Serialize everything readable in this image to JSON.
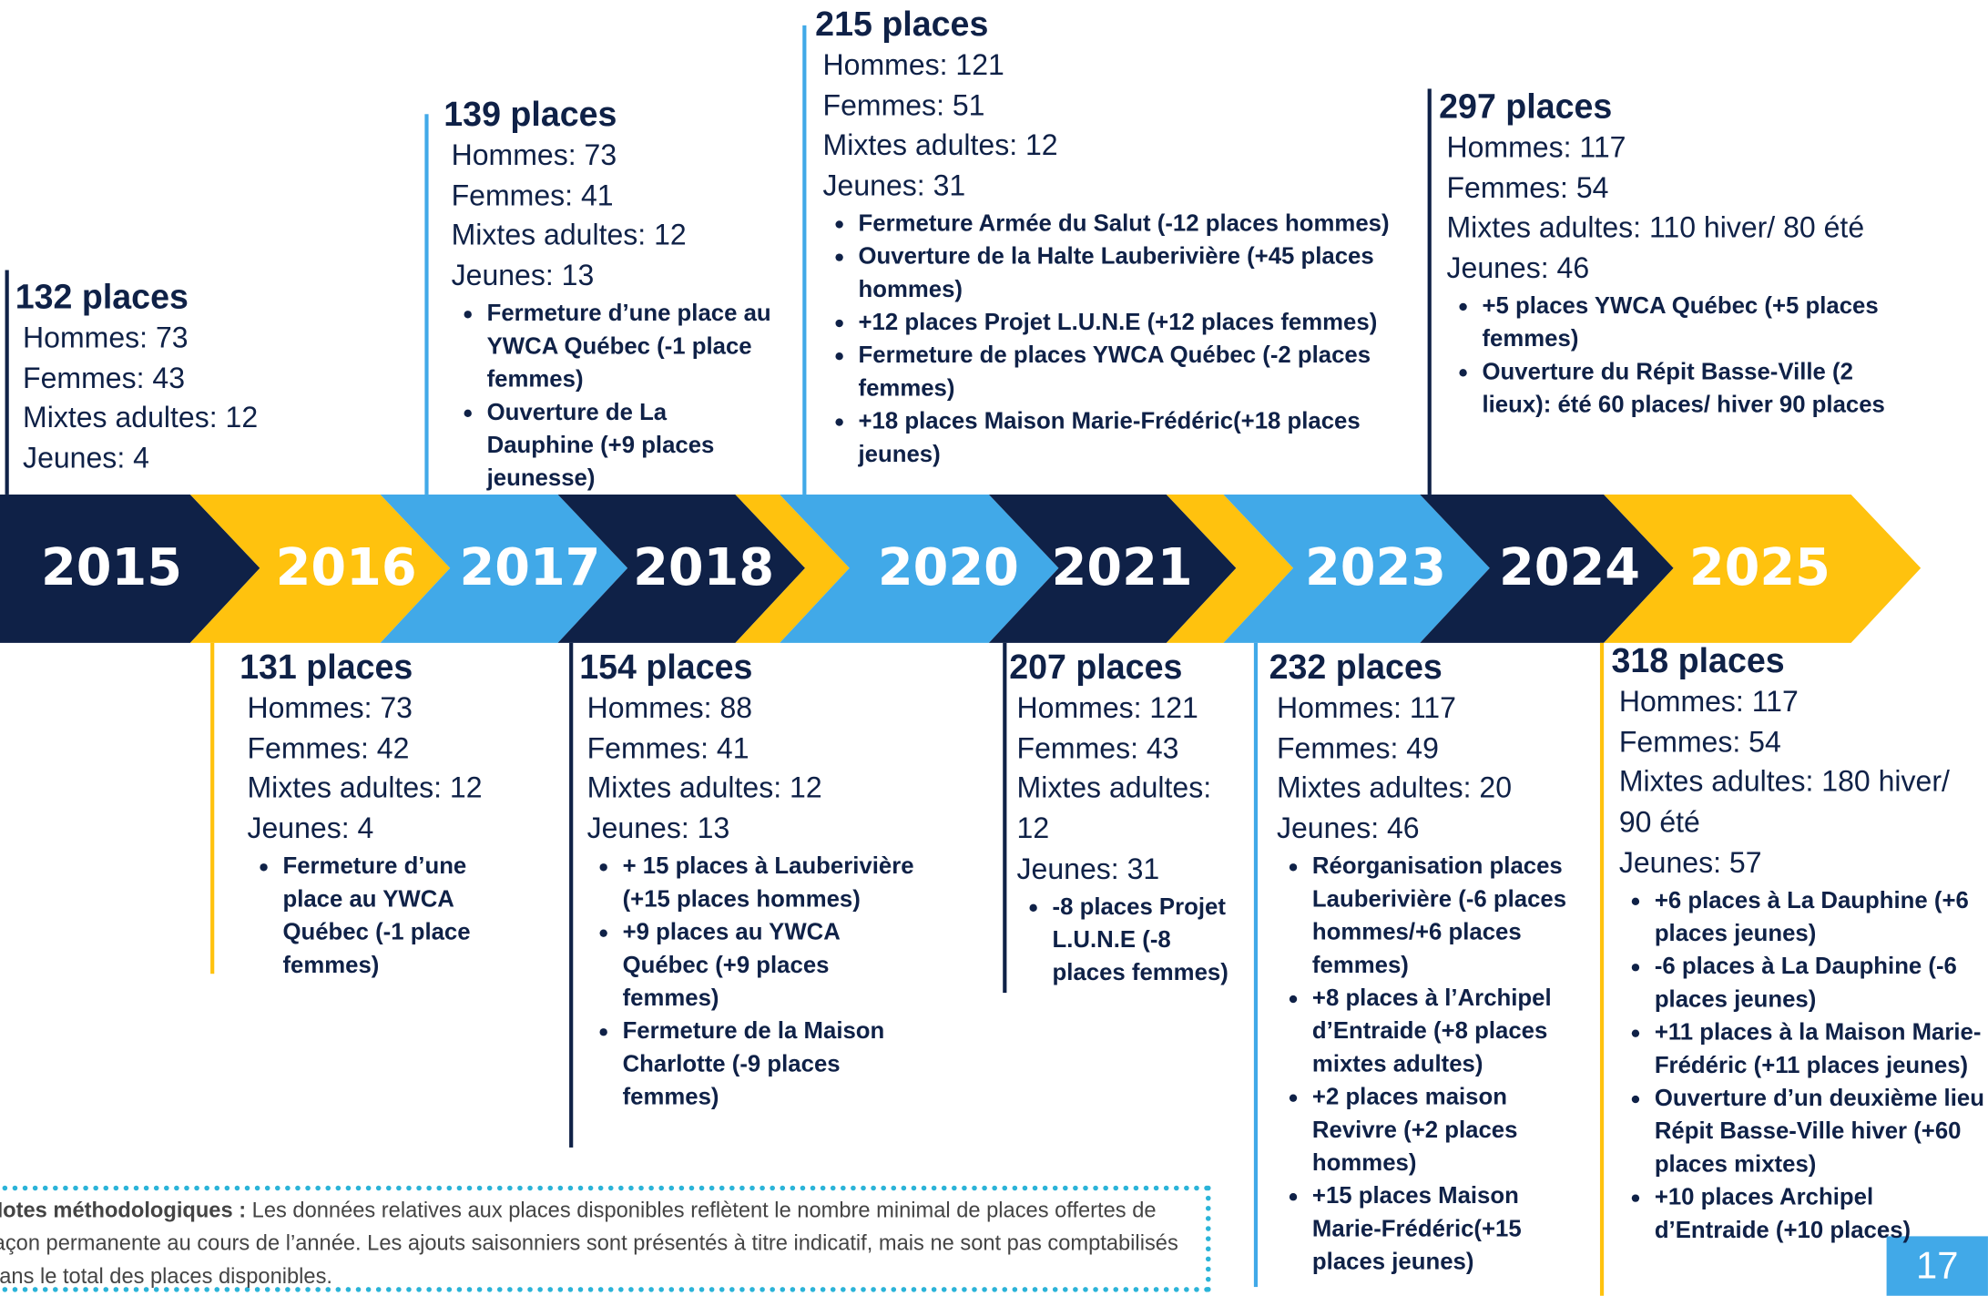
{
  "timeline": {
    "years": [
      "2015",
      "2016",
      "2017",
      "2018",
      "2020",
      "2021",
      "2023",
      "2024",
      "2025"
    ],
    "entries": [
      {
        "title": "132 places",
        "stats": [
          "Hommes: 73",
          "Femmes: 43",
          "Mixtes adultes: 12",
          "Jeunes: 4"
        ],
        "bullets": []
      },
      {
        "title": "131 places",
        "stats": [
          "Hommes: 73",
          "Femmes: 42",
          "Mixtes adultes: 12",
          "Jeunes: 4"
        ],
        "bullets": [
          "Fermeture d’une place au YWCA Québec  (-1 place femmes)"
        ]
      },
      {
        "title": "139 places",
        "stats": [
          "Hommes: 73",
          "Femmes: 41",
          "Mixtes adultes: 12",
          "Jeunes: 13"
        ],
        "bullets": [
          "Fermeture d’une place au YWCA Québec  (-1 place femmes)",
          "Ouverture de La Dauphine  (+9 places jeunesse)"
        ]
      },
      {
        "title": "154 places",
        "stats": [
          "Hommes: 88",
          "Femmes: 41",
          "Mixtes adultes: 12",
          "Jeunes: 13"
        ],
        "bullets": [
          "+ 15 places à Lauberivière (+15 places hommes)",
          "+9 places au YWCA Québec (+9 places femmes)",
          "Fermeture de la Maison Charlotte (-9 places femmes)"
        ]
      },
      {
        "title": "215 places",
        "stats": [
          "Hommes: 121",
          "Femmes: 51",
          "Mixtes adultes: 12",
          "Jeunes: 31"
        ],
        "bullets": [
          "Fermeture Armée du Salut (-12 places hommes)",
          "Ouverture de la Halte Lauberivière (+45 places hommes)",
          "+12 places Projet L.U.N.E (+12 places femmes)",
          "Fermeture de places YWCA Québec (-2 places femmes)",
          "+18 places Maison Marie-Frédéric(+18 places jeunes)"
        ]
      },
      {
        "title": "207  places",
        "stats": [
          "Hommes: 121",
          "Femmes: 43",
          "Mixtes adultes: 12",
          "Jeunes: 31"
        ],
        "bullets": [
          "-8 places Projet L.U.N.E (-8 places femmes)"
        ]
      },
      {
        "title": "232 places",
        "stats": [
          "Hommes: 117",
          "Femmes: 49",
          "Mixtes adultes: 20",
          "Jeunes: 46"
        ],
        "bullets": [
          "Réorganisation places Lauberivière (-6 places hommes/+6 places femmes)",
          "+8 places à l’Archipel d’Entraide  (+8 places mixtes adultes)",
          "+2 places maison Revivre (+2 places hommes)",
          "+15 places Maison Marie-Frédéric(+15 places jeunes)"
        ]
      },
      {
        "title": "297 places",
        "stats": [
          "Hommes: 117",
          "Femmes: 54",
          "Mixtes adultes: 110 hiver/ 80 été",
          "Jeunes: 46"
        ],
        "bullets": [
          "+5 places YWCA Québec  (+5 places femmes)",
          "Ouverture du Répit Basse-Ville (2 lieux): été 60 places/ hiver 90 places"
        ]
      },
      {
        "title": "318 places",
        "stats": [
          "Hommes: 117",
          "Femmes: 54",
          "Mixtes adultes: 180 hiver/ 90 été",
          "Jeunes: 57"
        ],
        "bullets": [
          "+6 places à La Dauphine (+6 places jeunes)",
          "-6 places à La Dauphine (-6 places jeunes)",
          "+11 places à la Maison Marie-Frédéric (+11 places jeunes)",
          "Ouverture d’un deuxième lieu Répit Basse-Ville  hiver (+60 places mixtes)",
          "+10 places Archipel d’Entraide (+10 places)"
        ]
      }
    ]
  },
  "notes": {
    "label": "Notes méthodologiques :",
    "text": "Les données relatives aux places disponibles reflètent le nombre minimal de places offertes de façon permanente au cours de l’année. Les ajouts saisonniers sont présentés à titre indicatif, mais ne sont pas comptabilisés dans le total des places disponibles."
  },
  "page_number": "17"
}
